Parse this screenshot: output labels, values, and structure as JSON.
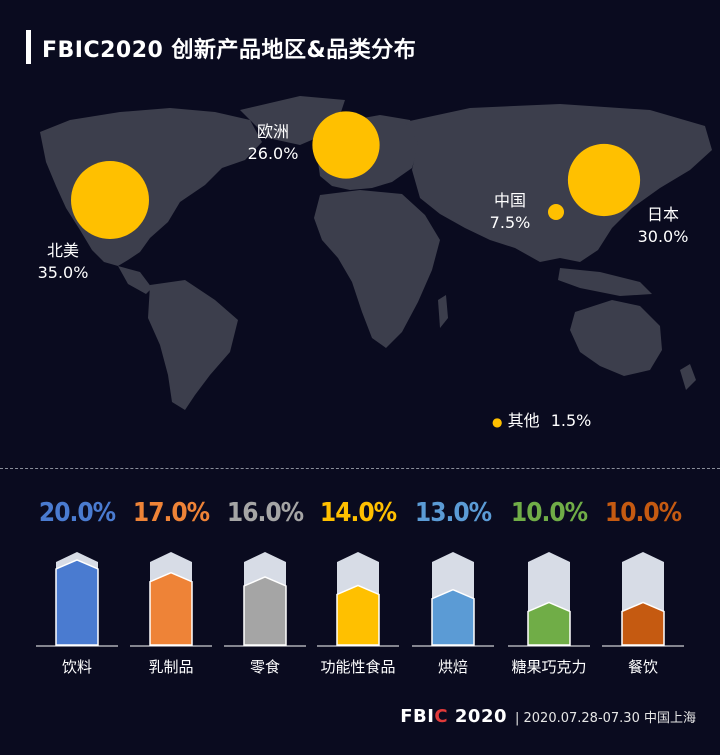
{
  "title": "FBIC2020 创新产品地区&品类分布",
  "regions": [
    {
      "name": "北美",
      "pct": "35.0%",
      "value": 35.0
    },
    {
      "name": "欧洲",
      "pct": "26.0%",
      "value": 26.0
    },
    {
      "name": "中国",
      "pct": "7.5%",
      "value": 7.5
    },
    {
      "name": "日本",
      "pct": "30.0%",
      "value": 30.0
    },
    {
      "name": "其他",
      "pct": "1.5%",
      "value": 1.5
    }
  ],
  "chart_data": {
    "type": "bar",
    "categories": [
      "饮料",
      "乳制品",
      "零食",
      "功能性食品",
      "烘焙",
      "糖果巧克力",
      "餐饮"
    ],
    "values": [
      20.0,
      17.0,
      16.0,
      14.0,
      13.0,
      10.0,
      10.0
    ],
    "value_labels": [
      "20.0%",
      "17.0%",
      "16.0%",
      "14.0%",
      "13.0%",
      "10.0%",
      "10.0%"
    ],
    "colors": [
      "#4a7bd0",
      "#ee8337",
      "#a5a5a5",
      "#ffc000",
      "#5b9bd5",
      "#70ad47",
      "#c55a11"
    ],
    "ylim": [
      0,
      35
    ]
  },
  "bubble_color": "#ffc000",
  "map_color": "#3c3e4c",
  "footer": {
    "brand_a": "FBI",
    "brand_b": "C",
    "brand_c": " 2020",
    "info": "| 2020.07.28-07.30  中国上海"
  }
}
